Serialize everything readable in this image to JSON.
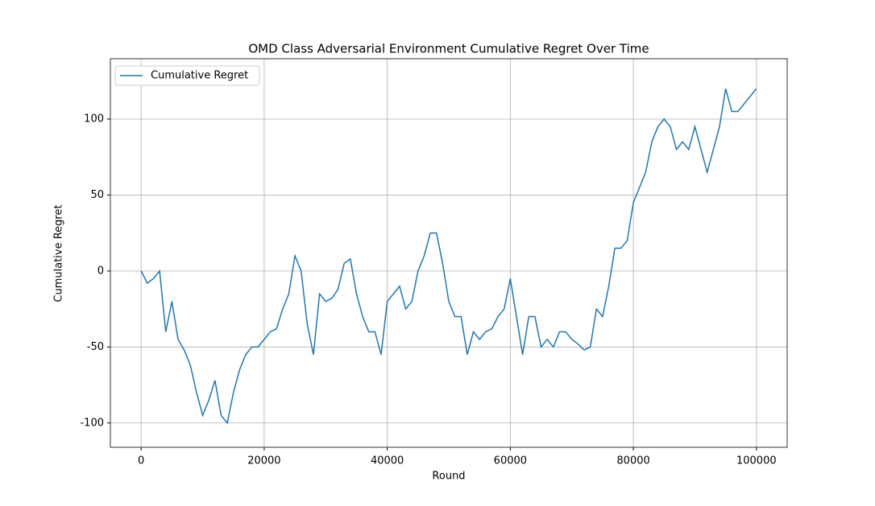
{
  "chart_data": {
    "type": "line",
    "title": "OMD Class Adversarial Environment Cumulative Regret Over Time",
    "x_label": "Round",
    "y_label": "Cumulative Regret",
    "x": [
      0,
      1000,
      2000,
      3000,
      4000,
      5000,
      6000,
      7000,
      8000,
      9000,
      10000,
      11000,
      12000,
      13000,
      14000,
      15000,
      16000,
      17000,
      18000,
      19000,
      20000,
      21000,
      22000,
      23000,
      24000,
      25000,
      26000,
      27000,
      28000,
      29000,
      30000,
      31000,
      32000,
      33000,
      34000,
      35000,
      36000,
      37000,
      38000,
      39000,
      40000,
      41000,
      42000,
      43000,
      44000,
      45000,
      46000,
      47000,
      48000,
      49000,
      50000,
      51000,
      52000,
      53000,
      54000,
      55000,
      56000,
      57000,
      58000,
      59000,
      60000,
      61000,
      62000,
      63000,
      64000,
      65000,
      66000,
      67000,
      68000,
      69000,
      70000,
      71000,
      72000,
      73000,
      74000,
      75000,
      76000,
      77000,
      78000,
      79000,
      80000,
      81000,
      82000,
      83000,
      84000,
      85000,
      86000,
      87000,
      88000,
      89000,
      90000,
      91000,
      92000,
      93000,
      94000,
      95000,
      96000,
      97000,
      98000,
      99000,
      100000
    ],
    "series": [
      {
        "name": "Cumulative Regret",
        "color": "#1f77b4",
        "values": [
          0,
          -8,
          -5,
          0,
          -40,
          -20,
          -45,
          -52,
          -62,
          -80,
          -95,
          -85,
          -72,
          -95,
          -100,
          -80,
          -65,
          -55,
          -50,
          -50,
          -45,
          -40,
          -38,
          -25,
          -15,
          10,
          0,
          -35,
          -55,
          -15,
          -20,
          -18,
          -12,
          5,
          8,
          -15,
          -30,
          -40,
          -40,
          -55,
          -20,
          -15,
          -10,
          -25,
          -20,
          0,
          10,
          25,
          25,
          5,
          -20,
          -30,
          -30,
          -55,
          -40,
          -45,
          -40,
          -38,
          -30,
          -25,
          -5,
          -30,
          -55,
          -30,
          -30,
          -50,
          -45,
          -50,
          -40,
          -40,
          -45,
          -48,
          -52,
          -50,
          -25,
          -30,
          -10,
          15,
          15,
          20,
          45,
          55,
          65,
          85,
          95,
          100,
          95,
          80,
          85,
          80,
          95,
          80,
          65,
          80,
          95,
          120,
          105,
          105,
          110,
          115,
          120
        ]
      }
    ],
    "xlim": [
      -5000,
      105000
    ],
    "ylim": [
      -116,
      139.7
    ],
    "xticks": [
      0,
      20000,
      40000,
      60000,
      80000,
      100000
    ],
    "yticks": [
      -100,
      -50,
      0,
      50,
      100
    ],
    "grid": true,
    "legend": "upper left"
  }
}
